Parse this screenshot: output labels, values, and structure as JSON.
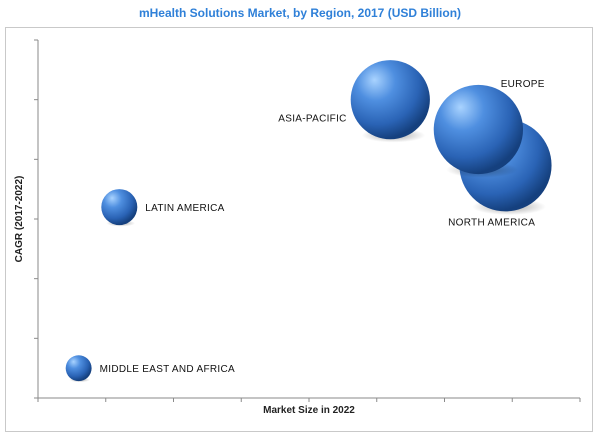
{
  "chart_data": {
    "type": "scatter",
    "title": "mHealth Solutions Market, by Region, 2017 (USD Billion)",
    "xlabel": "Market Size in 2022",
    "ylabel": "CAGR (2017-2022)",
    "xlim": [
      0,
      8
    ],
    "ylim": [
      0,
      6
    ],
    "grid": false,
    "bubble_color": "#2f6fbf",
    "title_color": "#2f80d8",
    "points": [
      {
        "label": "ASIA-PACIFIC",
        "x": 5.2,
        "y": 5.0,
        "size": 0.55,
        "label_pos": "left"
      },
      {
        "label": "NORTH AMERICA",
        "x": 6.9,
        "y": 3.9,
        "size": 0.64,
        "label_pos": "below"
      },
      {
        "label": "EUROPE",
        "x": 6.5,
        "y": 4.5,
        "size": 0.62,
        "label_pos": "above-right"
      },
      {
        "label": "LATIN AMERICA",
        "x": 1.2,
        "y": 3.2,
        "size": 0.25,
        "label_pos": "right"
      },
      {
        "label": "MIDDLE EAST AND AFRICA",
        "x": 0.6,
        "y": 0.5,
        "size": 0.18,
        "label_pos": "right"
      }
    ]
  }
}
